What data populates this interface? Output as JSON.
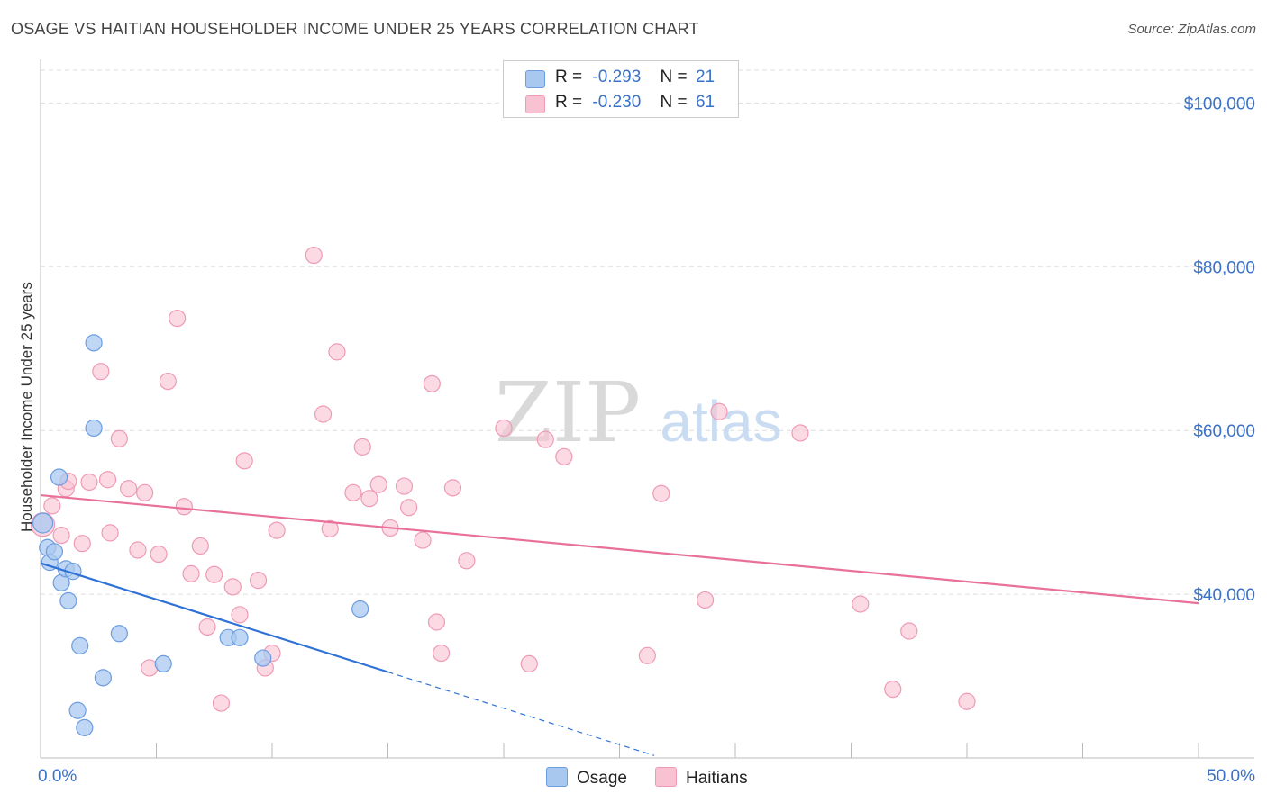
{
  "title": "OSAGE VS HAITIAN HOUSEHOLDER INCOME UNDER 25 YEARS CORRELATION CHART",
  "source": "Source: ZipAtlas.com",
  "watermark": {
    "zip": "ZIP",
    "atlas": "atlas"
  },
  "legend": {
    "rows": [
      {
        "r_label": "R =",
        "r_value": "-0.293",
        "n_label": "N =",
        "n_value": "21"
      },
      {
        "r_label": "R =",
        "r_value": "-0.230",
        "n_label": "N =",
        "n_value": "61"
      }
    ]
  },
  "bottom_legend": {
    "osage": "Osage",
    "haitians": "Haitians"
  },
  "colors": {
    "osage_fill": "#a9c8f0",
    "osage_stroke": "#6c9de0",
    "osage_line": "#2f72d6",
    "haitian_fill": "#f8c2d2",
    "haitian_stroke": "#ef9ab5",
    "haitian_line": "#e8709a",
    "axis_label": "#3a72c9",
    "grid": "#dddddd"
  },
  "chart_data": {
    "type": "scatter",
    "title": "OSAGE VS HAITIAN HOUSEHOLDER INCOME UNDER 25 YEARS CORRELATION CHART",
    "xlabel": "",
    "ylabel": "Householder Income Under 25 years",
    "xlim": [
      0,
      50
    ],
    "ylim": [
      20000,
      104000
    ],
    "x_tick_labels": [
      "0.0%",
      "50.0%"
    ],
    "y_ticks": [
      40000,
      60000,
      80000,
      100000
    ],
    "y_tick_labels": [
      "$40,000",
      "$60,000",
      "$80,000",
      "$100,000"
    ],
    "series": [
      {
        "name": "Osage",
        "r": -0.293,
        "n": 21,
        "points": [
          [
            0.1,
            48700
          ],
          [
            0.3,
            45700
          ],
          [
            0.4,
            43900
          ],
          [
            0.6,
            45200
          ],
          [
            0.8,
            54300
          ],
          [
            0.9,
            41400
          ],
          [
            1.1,
            43100
          ],
          [
            1.2,
            39200
          ],
          [
            1.4,
            42800
          ],
          [
            1.7,
            33700
          ],
          [
            2.3,
            60300
          ],
          [
            2.3,
            70700
          ],
          [
            2.7,
            29800
          ],
          [
            3.4,
            35200
          ],
          [
            1.6,
            25800
          ],
          [
            1.9,
            23700
          ],
          [
            5.3,
            31500
          ],
          [
            8.1,
            34700
          ],
          [
            8.6,
            34700
          ],
          [
            9.6,
            32200
          ],
          [
            13.8,
            38200
          ]
        ],
        "trend": {
          "x0": 0,
          "y0": 43800,
          "x1": 15,
          "y1": 30500,
          "dash_to_x": 26.5,
          "dash_to_y": 20300
        }
      },
      {
        "name": "Haitians",
        "r": -0.23,
        "n": 61,
        "points": [
          [
            0.1,
            48500
          ],
          [
            0.5,
            50800
          ],
          [
            0.9,
            47200
          ],
          [
            1.1,
            52900
          ],
          [
            1.2,
            53800
          ],
          [
            1.8,
            46200
          ],
          [
            2.1,
            53700
          ],
          [
            2.6,
            67200
          ],
          [
            2.9,
            54000
          ],
          [
            3.0,
            47500
          ],
          [
            3.4,
            59000
          ],
          [
            3.8,
            52900
          ],
          [
            4.2,
            45400
          ],
          [
            4.5,
            52400
          ],
          [
            4.7,
            31000
          ],
          [
            5.1,
            44900
          ],
          [
            5.5,
            66000
          ],
          [
            5.9,
            73700
          ],
          [
            6.2,
            50700
          ],
          [
            6.5,
            42500
          ],
          [
            6.9,
            45900
          ],
          [
            7.2,
            36000
          ],
          [
            7.5,
            42400
          ],
          [
            7.8,
            26700
          ],
          [
            8.3,
            40900
          ],
          [
            8.6,
            37500
          ],
          [
            8.8,
            56300
          ],
          [
            9.4,
            41700
          ],
          [
            9.7,
            31000
          ],
          [
            10.0,
            32800
          ],
          [
            10.2,
            47800
          ],
          [
            11.8,
            81400
          ],
          [
            12.2,
            62000
          ],
          [
            12.5,
            48000
          ],
          [
            12.8,
            69600
          ],
          [
            13.5,
            52400
          ],
          [
            13.9,
            58000
          ],
          [
            14.2,
            51700
          ],
          [
            14.6,
            53400
          ],
          [
            15.1,
            48100
          ],
          [
            15.7,
            53200
          ],
          [
            15.9,
            50600
          ],
          [
            16.5,
            46600
          ],
          [
            16.9,
            65700
          ],
          [
            17.1,
            36600
          ],
          [
            17.3,
            32800
          ],
          [
            17.8,
            53000
          ],
          [
            18.4,
            44100
          ],
          [
            20.0,
            60300
          ],
          [
            21.1,
            31500
          ],
          [
            21.8,
            58900
          ],
          [
            22.6,
            56800
          ],
          [
            26.2,
            32500
          ],
          [
            26.8,
            52300
          ],
          [
            28.7,
            39300
          ],
          [
            29.3,
            62300
          ],
          [
            32.8,
            59700
          ],
          [
            35.4,
            38800
          ],
          [
            36.8,
            28400
          ],
          [
            37.5,
            35500
          ],
          [
            40.0,
            26900
          ]
        ],
        "trend": {
          "x0": 0,
          "y0": 52100,
          "x1": 50,
          "y1": 38900
        }
      }
    ]
  }
}
